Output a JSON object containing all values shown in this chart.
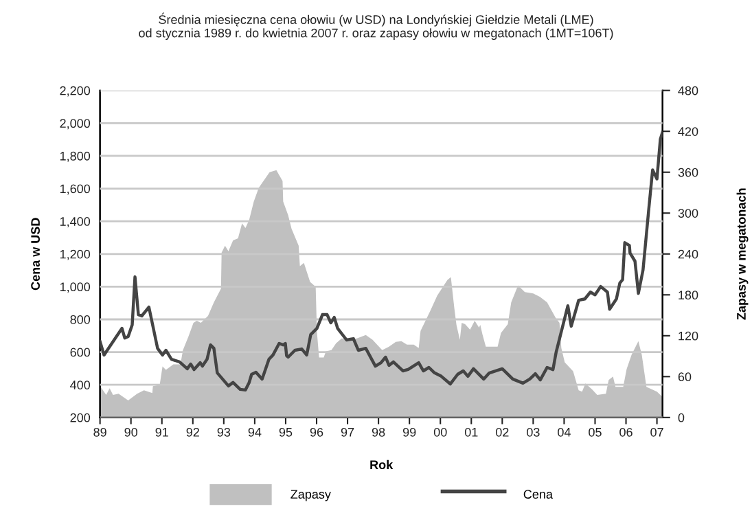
{
  "chart_data": {
    "type": "line",
    "title": "Średnia miesięczna cena ołowiu (w USD) na Londyńskiej Giełdzie Metali (LME)\nod stycznia 1989 r. do kwietnia 2007 r. oraz zapasy ołowiu w megatonach (1MT=106T)",
    "xlabel": "Rok",
    "ylabel": "Cena w USD",
    "y2label": "Zapasy w megatonach",
    "xlim": [
      1989,
      2007.18
    ],
    "xticks": [
      {
        "value": 1989,
        "label": "89"
      },
      {
        "value": 1990,
        "label": "90"
      },
      {
        "value": 1991,
        "label": "91"
      },
      {
        "value": 1992,
        "label": "92"
      },
      {
        "value": 1993,
        "label": "93"
      },
      {
        "value": 1994,
        "label": "94"
      },
      {
        "value": 1995,
        "label": "95"
      },
      {
        "value": 1996,
        "label": "96"
      },
      {
        "value": 1997,
        "label": "97"
      },
      {
        "value": 1998,
        "label": "98"
      },
      {
        "value": 1999,
        "label": "99"
      },
      {
        "value": 2000,
        "label": "00"
      },
      {
        "value": 2001,
        "label": "01"
      },
      {
        "value": 2002,
        "label": "02"
      },
      {
        "value": 2003,
        "label": "03"
      },
      {
        "value": 2004,
        "label": "04"
      },
      {
        "value": 2005,
        "label": "05"
      },
      {
        "value": 2006,
        "label": "06"
      },
      {
        "value": 2007,
        "label": "07"
      }
    ],
    "ylim": [
      200,
      2200
    ],
    "yticks": [
      200,
      400,
      600,
      800,
      {
        "value": 1000,
        "label": "1,000"
      },
      {
        "value": 1200,
        "label": "1,200"
      },
      {
        "value": 1400,
        "label": "1,400"
      },
      {
        "value": 1600,
        "label": "1,600"
      },
      {
        "value": 1800,
        "label": "1,800"
      },
      {
        "value": 2000,
        "label": "2,000"
      },
      {
        "value": 2200,
        "label": "2,200"
      }
    ],
    "y2lim": [
      0,
      480
    ],
    "y2ticks": [
      0,
      60,
      120,
      180,
      240,
      300,
      360,
      420,
      480
    ],
    "grid": "y",
    "legend": "bottom",
    "series": [
      {
        "name": "Zapasy",
        "type": "area",
        "axis": "y2",
        "color": "#c0c0c0",
        "x": [
          1989.02,
          1989.2,
          1989.31,
          1989.42,
          1989.6,
          1989.91,
          1990.2,
          1990.42,
          1990.69,
          1990.71,
          1990.93,
          1991.02,
          1991.13,
          1991.37,
          1991.6,
          1991.68,
          1991.86,
          1992.02,
          1992.13,
          1992.26,
          1992.49,
          1992.68,
          1992.91,
          1992.93,
          1993.04,
          1993.15,
          1993.3,
          1993.46,
          1993.59,
          1993.7,
          1993.82,
          1993.97,
          1994.13,
          1994.48,
          1994.7,
          1994.9,
          1994.92,
          1995.08,
          1995.19,
          1995.42,
          1995.46,
          1995.59,
          1995.79,
          1995.97,
          1996.01,
          1996.08,
          1996.23,
          1996.3,
          1996.48,
          1996.63,
          1996.81,
          1997.03,
          1997.3,
          1997.59,
          1997.81,
          1998.12,
          1998.34,
          1998.56,
          1998.74,
          1998.92,
          1999.14,
          1999.3,
          1999.36,
          1999.67,
          1999.9,
          2000.23,
          2000.34,
          2000.45,
          2000.52,
          2000.63,
          2000.69,
          2000.8,
          2000.96,
          2001.11,
          2001.25,
          2001.29,
          2001.36,
          2001.47,
          2001.85,
          2001.96,
          2002.18,
          2002.29,
          2002.51,
          2002.73,
          2003.0,
          2003.22,
          2003.45,
          2003.73,
          2003.85,
          2003.91,
          2004.02,
          2004.29,
          2004.47,
          2004.58,
          2004.69,
          2004.91,
          2005.07,
          2005.35,
          2005.44,
          2005.58,
          2005.66,
          2005.91,
          2006.02,
          2006.18,
          2006.4,
          2006.51,
          2006.66,
          2007.0,
          2007.18
        ],
        "values": [
          45,
          33,
          43,
          33,
          35,
          25,
          35,
          40,
          36,
          46,
          48,
          75,
          70,
          78,
          78,
          99,
          119,
          139,
          142,
          139,
          149,
          169,
          189,
          242,
          252,
          244,
          260,
          263,
          285,
          278,
          290,
          317,
          337,
          360,
          363,
          347,
          317,
          297,
          277,
          252,
          222,
          227,
          199,
          192,
          126,
          88,
          88,
          97,
          99,
          109,
          116,
          114,
          116,
          121,
          114,
          99,
          104,
          111,
          112,
          107,
          107,
          102,
          127,
          156,
          179,
          202,
          206,
          161,
          136,
          114,
          139,
          137,
          129,
          142,
          132,
          136,
          122,
          104,
          104,
          124,
          137,
          169,
          194,
          184,
          182,
          177,
          169,
          146,
          139,
          102,
          81,
          68,
          40,
          38,
          50,
          41,
          33,
          35,
          55,
          60,
          45,
          45,
          71,
          92,
          112,
          92,
          45,
          38,
          30
        ]
      },
      {
        "name": "Cena",
        "color": "#444444",
        "x": [
          1989.0,
          1989.13,
          1989.53,
          1989.71,
          1989.8,
          1989.91,
          1990.04,
          1990.13,
          1990.24,
          1990.35,
          1990.58,
          1990.86,
          1991.02,
          1991.13,
          1991.31,
          1991.57,
          1991.82,
          1991.93,
          1992.04,
          1992.24,
          1992.31,
          1992.46,
          1992.57,
          1992.68,
          1992.79,
          1993.15,
          1993.3,
          1993.53,
          1993.7,
          1993.82,
          1993.9,
          1994.04,
          1994.24,
          1994.46,
          1994.59,
          1994.79,
          1994.92,
          1994.99,
          1995.03,
          1995.08,
          1995.3,
          1995.52,
          1995.68,
          1995.81,
          1996.01,
          1996.19,
          1996.34,
          1996.46,
          1996.57,
          1996.68,
          1996.97,
          1997.19,
          1997.35,
          1997.59,
          1997.9,
          1998.08,
          1998.23,
          1998.34,
          1998.48,
          1998.79,
          1998.96,
          1999.3,
          1999.45,
          1999.63,
          1999.81,
          2000.03,
          2000.32,
          2000.56,
          2000.74,
          2000.89,
          2001.07,
          2001.4,
          2001.58,
          2002.0,
          2002.34,
          2002.67,
          2002.89,
          2003.07,
          2003.23,
          2003.45,
          2003.64,
          2003.74,
          2004.12,
          2004.23,
          2004.47,
          2004.67,
          2004.85,
          2005.0,
          2005.18,
          2005.4,
          2005.47,
          2005.69,
          2005.8,
          2005.89,
          2005.96,
          2006.11,
          2006.13,
          2006.29,
          2006.4,
          2006.55,
          2006.73,
          2006.86,
          2007.0,
          2007.11,
          2007.18
        ],
        "values": [
          665,
          582,
          695,
          745,
          686,
          695,
          766,
          1060,
          829,
          821,
          875,
          623,
          582,
          611,
          556,
          540,
          498,
          527,
          493,
          535,
          514,
          556,
          644,
          623,
          473,
          393,
          414,
          372,
          368,
          414,
          464,
          477,
          435,
          556,
          582,
          653,
          644,
          653,
          578,
          569,
          611,
          619,
          582,
          707,
          745,
          829,
          829,
          779,
          812,
          745,
          674,
          682,
          611,
          623,
          514,
          535,
          569,
          519,
          540,
          485,
          494,
          535,
          485,
          506,
          473,
          452,
          405,
          464,
          485,
          452,
          498,
          435,
          472,
          498,
          435,
          410,
          435,
          468,
          430,
          506,
          493,
          598,
          883,
          758,
          917,
          925,
          967,
          950,
          1001,
          967,
          862,
          925,
          1022,
          1043,
          1269,
          1252,
          1206,
          1156,
          959,
          1102,
          1462,
          1714,
          1659,
          1902,
          1944
        ]
      }
    ]
  }
}
